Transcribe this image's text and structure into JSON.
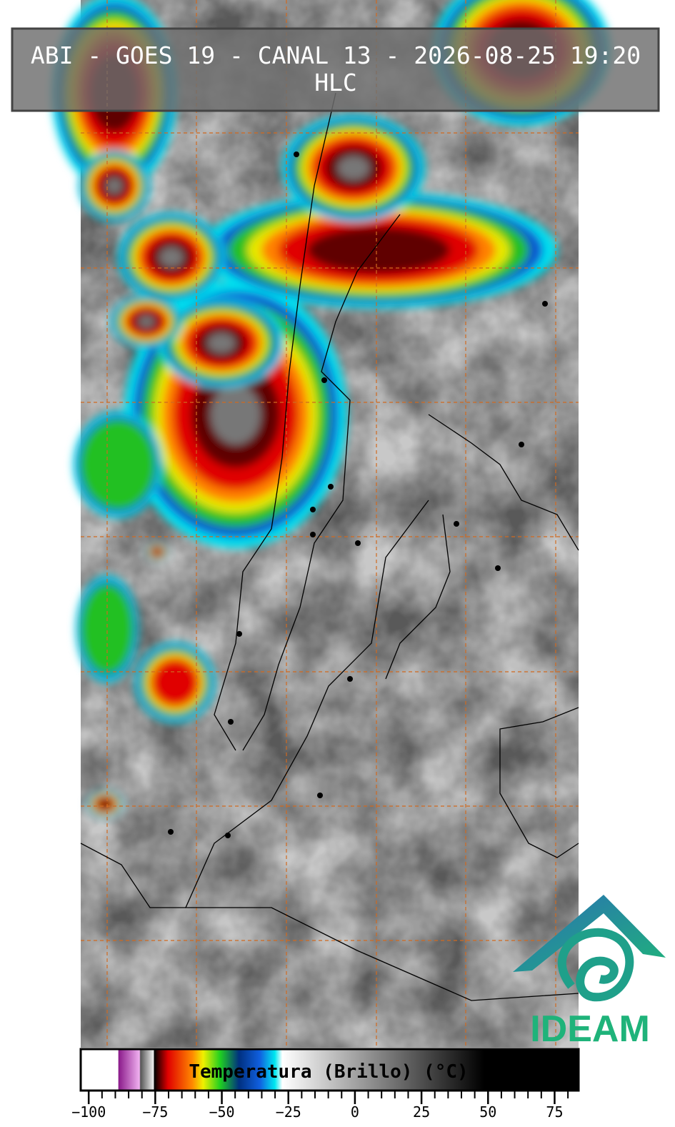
{
  "title": "ABI - GOES 19 - CANAL 13 - 2026-08-25 19:20",
  "subtitle": "HLC",
  "logo": "IDEAM",
  "colorbar": {
    "label": "Temperatura (Brillo) (°C)",
    "range": [
      -103,
      84
    ],
    "ticks": [
      {
        "value": -100,
        "label": "−100"
      },
      {
        "value": -75,
        "label": "−75"
      },
      {
        "value": -50,
        "label": "−50"
      },
      {
        "value": -25,
        "label": "−25"
      },
      0,
      25,
      50,
      75
    ]
  }
}
